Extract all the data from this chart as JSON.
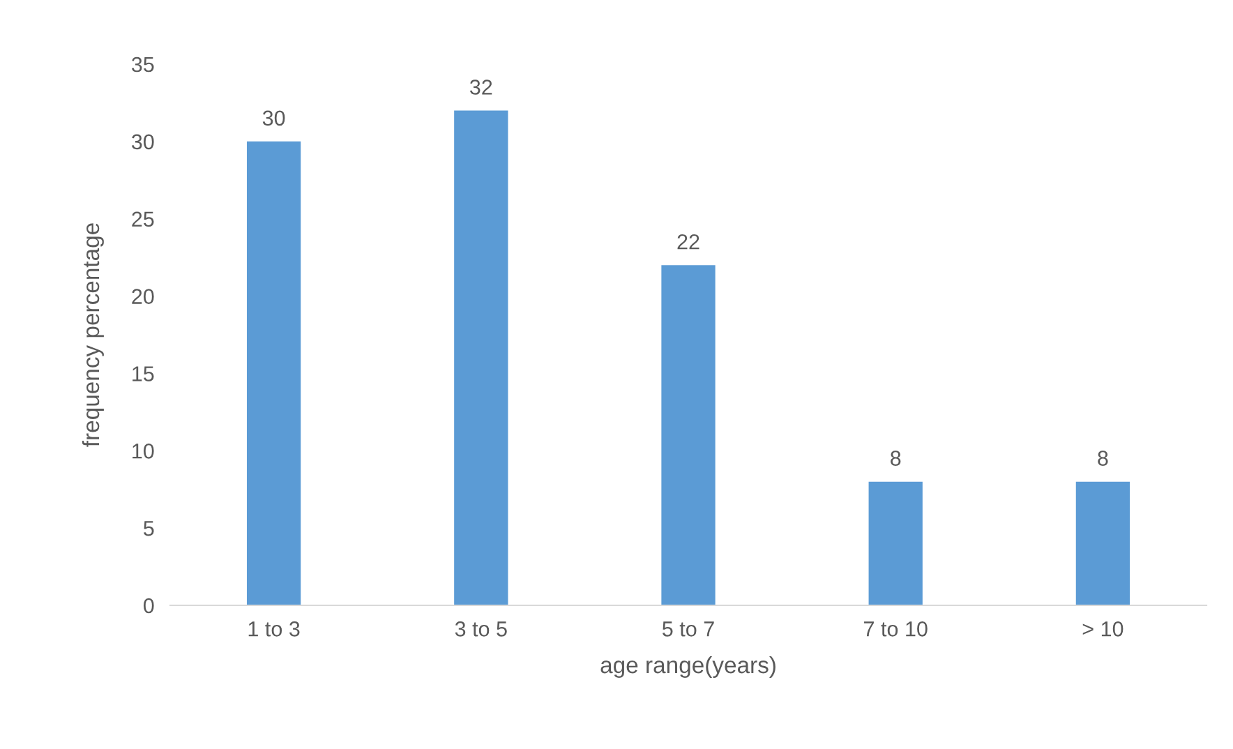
{
  "chart_data": {
    "type": "bar",
    "xlabel": "age range(years)",
    "ylabel": "frequency percentage",
    "categories": [
      "1 to 3",
      "3 to 5",
      "5 to 7",
      "7 to 10",
      "> 10"
    ],
    "values": [
      30,
      32,
      22,
      8,
      8
    ],
    "color": "#5b9bd5",
    "ylim": [
      0,
      35
    ],
    "yticks": [
      0,
      5,
      10,
      15,
      20,
      25,
      30,
      35
    ],
    "grid": false,
    "data_labels": true
  }
}
